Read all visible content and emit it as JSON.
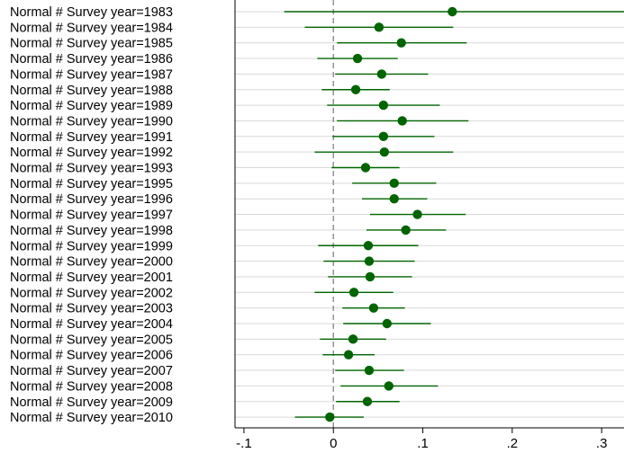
{
  "chart_data": {
    "type": "coefficient-plot",
    "xlim": [
      -0.11,
      0.325
    ],
    "x_ticks": [
      -0.1,
      0,
      0.1,
      0.2,
      0.3
    ],
    "x_tick_labels": [
      "-.1",
      "0",
      ".1",
      ".2",
      ".3"
    ],
    "reference_line": 0,
    "grid": true,
    "colors": {
      "marker": "#006400",
      "ci": "#006400",
      "reference": "#8c8c8c",
      "grid": "#d9d9d9"
    },
    "rows": [
      {
        "label": "Normal # Survey year=1983",
        "estimate": 0.133,
        "ci": [
          -0.055,
          0.325
        ]
      },
      {
        "label": "Normal # Survey year=1984",
        "estimate": 0.051,
        "ci": [
          -0.032,
          0.134
        ]
      },
      {
        "label": "Normal # Survey year=1985",
        "estimate": 0.076,
        "ci": [
          0.004,
          0.149
        ]
      },
      {
        "label": "Normal # Survey year=1986",
        "estimate": 0.027,
        "ci": [
          -0.018,
          0.072
        ]
      },
      {
        "label": "Normal # Survey year=1987",
        "estimate": 0.054,
        "ci": [
          0.002,
          0.106
        ]
      },
      {
        "label": "Normal # Survey year=1988",
        "estimate": 0.025,
        "ci": [
          -0.013,
          0.063
        ]
      },
      {
        "label": "Normal # Survey year=1989",
        "estimate": 0.056,
        "ci": [
          -0.007,
          0.119
        ]
      },
      {
        "label": "Normal # Survey year=1990",
        "estimate": 0.077,
        "ci": [
          0.004,
          0.151
        ]
      },
      {
        "label": "Normal # Survey year=1991",
        "estimate": 0.056,
        "ci": [
          -0.001,
          0.113
        ]
      },
      {
        "label": "Normal # Survey year=1992",
        "estimate": 0.057,
        "ci": [
          -0.021,
          0.134
        ]
      },
      {
        "label": "Normal # Survey year=1993",
        "estimate": 0.036,
        "ci": [
          -0.002,
          0.074
        ]
      },
      {
        "label": "Normal # Survey year=1995",
        "estimate": 0.068,
        "ci": [
          0.021,
          0.115
        ]
      },
      {
        "label": "Normal # Survey year=1996",
        "estimate": 0.068,
        "ci": [
          0.032,
          0.105
        ]
      },
      {
        "label": "Normal # Survey year=1997",
        "estimate": 0.094,
        "ci": [
          0.041,
          0.148
        ]
      },
      {
        "label": "Normal # Survey year=1998",
        "estimate": 0.081,
        "ci": [
          0.037,
          0.126
        ]
      },
      {
        "label": "Normal # Survey year=1999",
        "estimate": 0.039,
        "ci": [
          -0.017,
          0.095
        ]
      },
      {
        "label": "Normal # Survey year=2000",
        "estimate": 0.04,
        "ci": [
          -0.011,
          0.091
        ]
      },
      {
        "label": "Normal # Survey year=2001",
        "estimate": 0.041,
        "ci": [
          -0.006,
          0.088
        ]
      },
      {
        "label": "Normal # Survey year=2002",
        "estimate": 0.023,
        "ci": [
          -0.021,
          0.067
        ]
      },
      {
        "label": "Normal # Survey year=2003",
        "estimate": 0.045,
        "ci": [
          0.01,
          0.08
        ]
      },
      {
        "label": "Normal # Survey year=2004",
        "estimate": 0.06,
        "ci": [
          0.011,
          0.109
        ]
      },
      {
        "label": "Normal # Survey year=2005",
        "estimate": 0.022,
        "ci": [
          -0.015,
          0.059
        ]
      },
      {
        "label": "Normal # Survey year=2006",
        "estimate": 0.017,
        "ci": [
          -0.012,
          0.046
        ]
      },
      {
        "label": "Normal # Survey year=2007",
        "estimate": 0.04,
        "ci": [
          0.002,
          0.079
        ]
      },
      {
        "label": "Normal # Survey year=2008",
        "estimate": 0.062,
        "ci": [
          0.008,
          0.117
        ]
      },
      {
        "label": "Normal # Survey year=2009",
        "estimate": 0.038,
        "ci": [
          0.003,
          0.074
        ]
      },
      {
        "label": "Normal # Survey year=2010",
        "estimate": -0.004,
        "ci": [
          -0.043,
          0.034
        ]
      }
    ]
  }
}
